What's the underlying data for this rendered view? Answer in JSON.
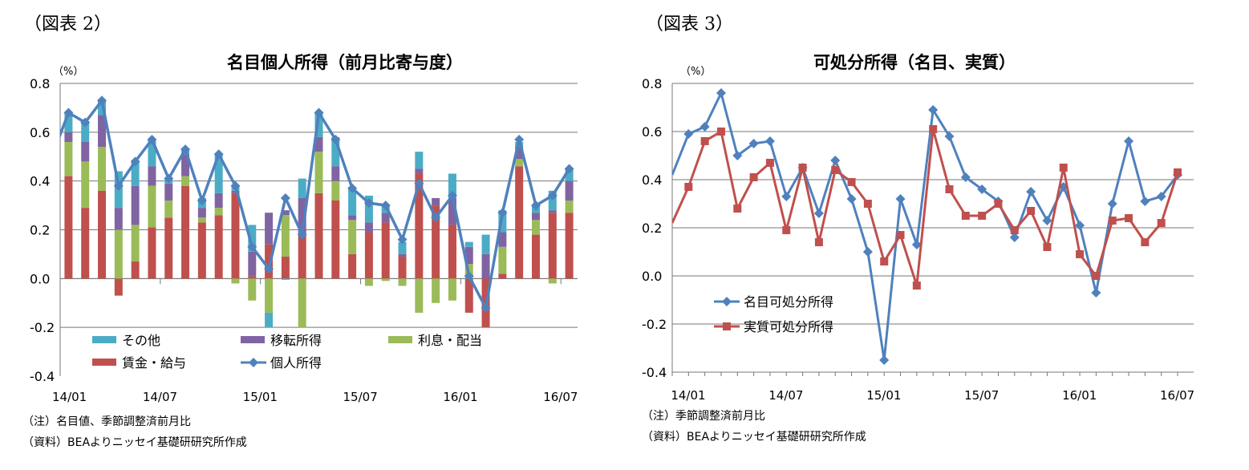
{
  "chart_data": [
    {
      "type": "bar",
      "figure_label": "（図表 2）",
      "title": "名目個人所得（前月比寄与度）",
      "unit_label": "（%）",
      "ylim": [
        -0.4,
        0.8
      ],
      "yticks": [
        "0.8",
        "0.6",
        "0.4",
        "0.2",
        "0.0",
        "-0.2",
        "-0.4"
      ],
      "ytick_values": [
        0.8,
        0.6,
        0.4,
        0.2,
        0.0,
        -0.2,
        -0.4
      ],
      "xtick_labels": [
        "14/01",
        "14/07",
        "15/01",
        "15/07",
        "16/01",
        "16/07"
      ],
      "categories": [
        "14/01",
        "14/02",
        "14/03",
        "14/04",
        "14/05",
        "14/06",
        "14/07",
        "14/08",
        "14/09",
        "14/10",
        "14/11",
        "14/12",
        "15/01",
        "15/02",
        "15/03",
        "15/04",
        "15/05",
        "15/06",
        "15/07",
        "15/08",
        "15/09",
        "15/10",
        "15/11",
        "15/12",
        "16/01",
        "16/02",
        "16/03",
        "16/04",
        "16/05",
        "16/06",
        "16/07"
      ],
      "stacked_series": [
        {
          "name": "賃金・給与",
          "color": "#c0504d",
          "values": [
            0.42,
            0.29,
            0.36,
            -0.07,
            0.07,
            0.21,
            0.25,
            0.38,
            0.23,
            0.26,
            0.35,
            0.01,
            0.14,
            0.09,
            0.18,
            0.35,
            0.32,
            0.1,
            0.19,
            0.23,
            0.09,
            0.43,
            0.3,
            0.22,
            -0.14,
            -0.2,
            0.02,
            0.46,
            0.18,
            0.27,
            0.27
          ]
        },
        {
          "name": "利息・配当",
          "color": "#9bbb59",
          "values": [
            0.14,
            0.19,
            0.18,
            0.2,
            0.15,
            0.17,
            0.07,
            0.04,
            0.02,
            0.03,
            -0.02,
            -0.09,
            -0.14,
            0.17,
            -0.2,
            0.17,
            0.08,
            0.14,
            -0.03,
            -0.01,
            -0.03,
            -0.14,
            -0.1,
            -0.09,
            0.06,
            0.0,
            0.11,
            0.03,
            0.06,
            -0.02,
            0.05
          ]
        },
        {
          "name": "移転所得",
          "color": "#8064a2",
          "values": [
            0.04,
            0.08,
            0.13,
            0.09,
            0.16,
            0.08,
            0.07,
            0.09,
            0.04,
            0.06,
            0.01,
            0.1,
            0.13,
            0.02,
            0.15,
            0.06,
            0.06,
            0.02,
            0.04,
            0.04,
            0.01,
            0.02,
            0.03,
            0.11,
            0.07,
            0.1,
            0.06,
            0.05,
            0.03,
            0.01,
            0.08
          ]
        },
        {
          "name": "その他",
          "color": "#4bacc6",
          "values": [
            0.08,
            0.08,
            0.06,
            0.15,
            0.1,
            0.11,
            0.02,
            0.02,
            0.04,
            0.16,
            0.02,
            0.11,
            -0.06,
            -0.005,
            0.08,
            0.1,
            0.12,
            0.11,
            0.11,
            0.03,
            0.05,
            0.07,
            0.0,
            0.1,
            0.02,
            0.08,
            0.09,
            0.02,
            0.03,
            0.08,
            0.05
          ]
        }
      ],
      "line_series": {
        "name": "個人所得",
        "color": "#4f81bd",
        "previous_value": 0.5,
        "values": [
          0.68,
          0.64,
          0.73,
          0.38,
          0.48,
          0.57,
          0.41,
          0.53,
          0.32,
          0.51,
          0.38,
          0.13,
          0.04,
          0.33,
          0.18,
          0.68,
          0.57,
          0.37,
          0.31,
          0.3,
          0.16,
          0.39,
          0.25,
          0.34,
          0.01,
          -0.12,
          0.27,
          0.57,
          0.3,
          0.34,
          0.45
        ]
      },
      "legend": [
        "その他",
        "移転所得",
        "利息・配当",
        "賃金・給与",
        "個人所得"
      ],
      "legend_placement": "bottom-inside",
      "grid": true,
      "notes": [
        "（注）名目値、季節調整済前月比",
        "（資料）BEAよりニッセイ基礎研研究所作成"
      ]
    },
    {
      "type": "line",
      "figure_label": "（図表 3）",
      "title": "可処分所得（名目、実質）",
      "unit_label": "（%）",
      "ylim": [
        -0.4,
        0.8
      ],
      "yticks": [
        "0.8",
        "0.6",
        "0.4",
        "0.2",
        "0.0",
        "-0.2",
        "-0.4"
      ],
      "ytick_values": [
        0.8,
        0.6,
        0.4,
        0.2,
        0.0,
        -0.2,
        -0.4
      ],
      "xtick_labels": [
        "14/01",
        "14/07",
        "15/01",
        "15/07",
        "16/01",
        "16/07"
      ],
      "categories": [
        "13/12",
        "14/01",
        "14/02",
        "14/03",
        "14/04",
        "14/05",
        "14/06",
        "14/07",
        "14/08",
        "14/09",
        "14/10",
        "14/11",
        "14/12",
        "15/01",
        "15/02",
        "15/03",
        "15/04",
        "15/05",
        "15/06",
        "15/07",
        "15/08",
        "15/09",
        "15/10",
        "15/11",
        "15/12",
        "16/01",
        "16/02",
        "16/03",
        "16/04",
        "16/05",
        "16/06",
        "16/07"
      ],
      "series": [
        {
          "name": "名目可処分所得",
          "color": "#4f81bd",
          "marker": "diamond",
          "values": [
            0.42,
            0.59,
            0.62,
            0.76,
            0.5,
            0.55,
            0.56,
            0.33,
            0.45,
            0.26,
            0.48,
            0.32,
            0.1,
            -0.35,
            0.32,
            0.13,
            0.69,
            0.58,
            0.41,
            0.36,
            0.31,
            0.16,
            0.35,
            0.23,
            0.37,
            0.21,
            -0.07,
            0.3,
            0.56,
            0.31,
            0.33,
            0.42
          ]
        },
        {
          "name": "実質可処分所得",
          "color": "#c0504d",
          "marker": "square",
          "values": [
            0.22,
            0.37,
            0.56,
            0.6,
            0.28,
            0.41,
            0.47,
            0.19,
            0.45,
            0.14,
            0.44,
            0.39,
            0.3,
            0.06,
            0.17,
            -0.04,
            0.61,
            0.36,
            0.25,
            0.25,
            0.3,
            0.19,
            0.27,
            0.12,
            0.45,
            0.09,
            0.0,
            0.23,
            0.24,
            0.14,
            0.22,
            0.43
          ]
        }
      ],
      "legend_placement": "bottom-left-inside",
      "grid": true,
      "notes": [
        "（注）季節調整済前月比",
        "（資料）BEAよりニッセイ基礎研研究所作成"
      ]
    }
  ]
}
